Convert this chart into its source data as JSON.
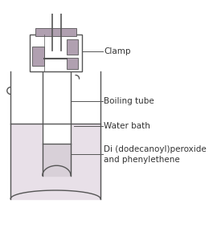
{
  "bg_color": "#ffffff",
  "gray_color": "#b0a0b0",
  "line_color": "#555555",
  "text_color": "#333333",
  "water_fill": "#e8e0e8",
  "chem_fill": "#d8d0d8",
  "figsize": [
    2.7,
    2.84
  ],
  "dpi": 100,
  "labels": {
    "clamp": "Clamp",
    "boiling_tube": "Boiling tube",
    "water_bath": "Water bath",
    "chemical": "Di (dodecanoyl)peroxide\nand phenylethene"
  }
}
